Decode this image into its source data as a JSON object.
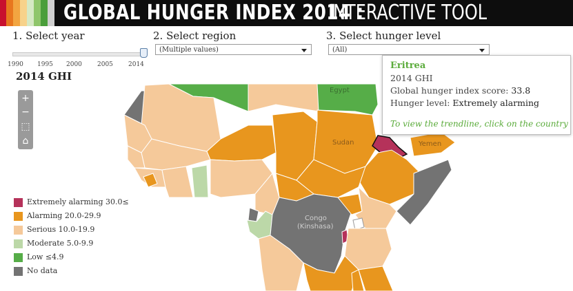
{
  "header": {
    "title_bold": "GLOBAL HUNGER INDEX 2014 :",
    "title_light": "INTERACTIVE TOOL",
    "stripe_colors": [
      "#c8102e",
      "#e8771e",
      "#f2a541",
      "#f7d28a",
      "#8fc66b",
      "#4a9e3a",
      "#d0d0d0"
    ]
  },
  "controls": {
    "year_label": "1. Select year",
    "region_label": "2. Select region",
    "region_value": "(Multiple values)",
    "hunger_label": "3. Select hunger level",
    "hunger_value": "(All)",
    "year_ticks": [
      "1990",
      "1995",
      "2000",
      "2005",
      "2014"
    ],
    "selected_year": "2014"
  },
  "map": {
    "title": "2014 GHI",
    "country_labels": {
      "egypt": "Egypt",
      "sudan": "Sudan",
      "yemen": "Yemen",
      "congo_line1": "Congo",
      "congo_line2": "(Kinshasa)"
    },
    "colors": {
      "extremely_alarming": "#b5325a",
      "alarming": "#e8961e",
      "serious": "#f5c99a",
      "moderate": "#bcd8a8",
      "low": "#56ad48",
      "no_data": "#737373",
      "sea": "#ffffff"
    }
  },
  "zoom": {
    "zoom_in": "+",
    "zoom_out": "−",
    "select": "⬚",
    "home": "⌂"
  },
  "legend": [
    {
      "label": "Extremely alarming 30.0≤",
      "color": "#b5325a"
    },
    {
      "label": "Alarming 20.0-29.9",
      "color": "#e8961e"
    },
    {
      "label": "Serious 10.0-19.9",
      "color": "#f5c99a"
    },
    {
      "label": "Moderate 5.0-9.9",
      "color": "#bcd8a8"
    },
    {
      "label": "Low ≤4.9",
      "color": "#56ad48"
    },
    {
      "label": "No data",
      "color": "#737373"
    }
  ],
  "tooltip": {
    "country": "Eritrea",
    "year_line": "2014 GHI",
    "score_label": "Global hunger index score:",
    "score_value": "33.8",
    "level_label": "Hunger level:",
    "level_value": "Extremely alarming",
    "hint": "To view the trendline, click on the country"
  }
}
